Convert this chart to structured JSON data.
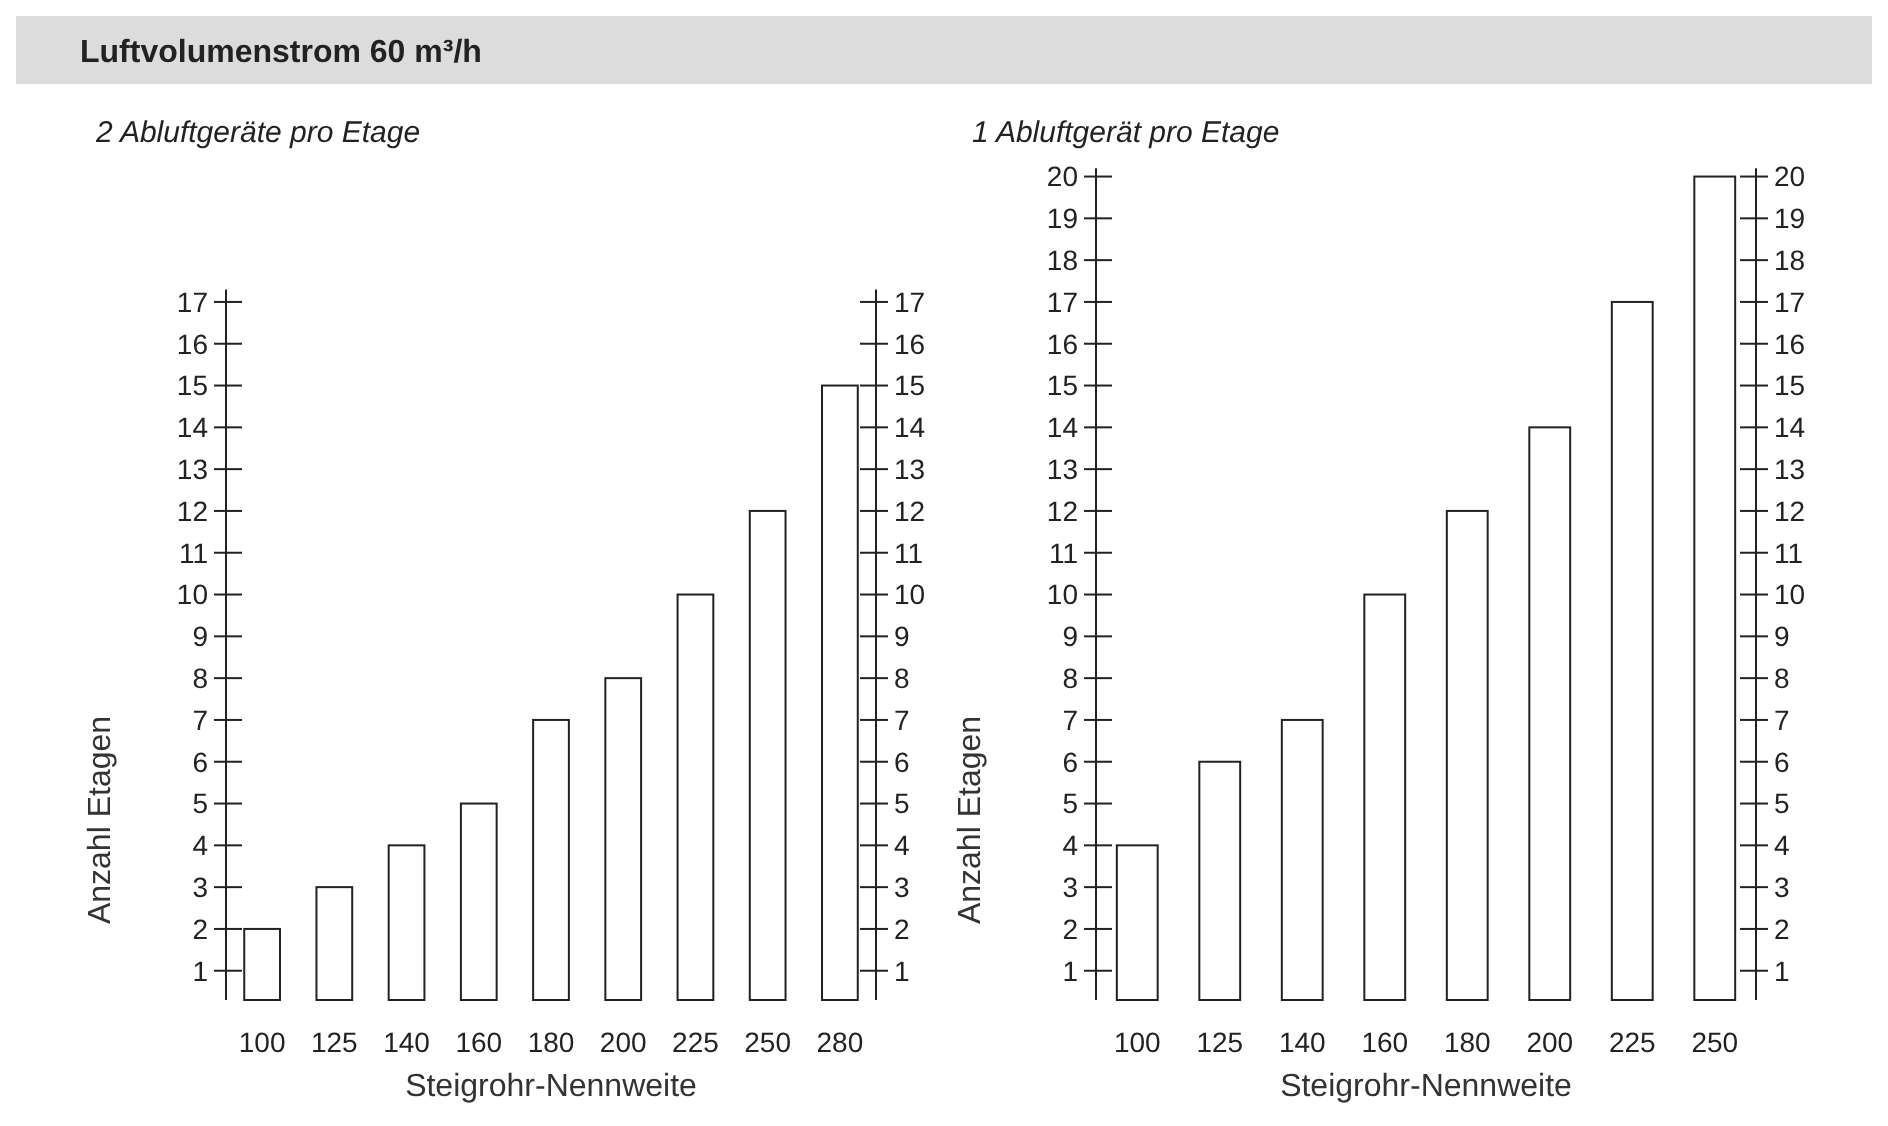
{
  "chart_data": [
    {
      "type": "bar",
      "title": "Luftvolumenstrom 60 m³/h",
      "subtitle": "2 Abluftgeräte pro Etage",
      "xlabel": "Steigrohr-Nennweite",
      "ylabel": "Anzahl Etagen",
      "categories": [
        "100",
        "125",
        "140",
        "160",
        "180",
        "200",
        "225",
        "250",
        "280"
      ],
      "values": [
        2,
        3,
        4,
        5,
        7,
        8,
        10,
        12,
        15
      ],
      "color": "#ffffff",
      "ylim": [
        0.3,
        17.3
      ],
      "yticks": [
        1,
        2,
        3,
        4,
        5,
        6,
        7,
        8,
        9,
        10,
        11,
        12,
        13,
        14,
        15,
        16,
        17
      ],
      "y2lim": [
        0.3,
        17.3
      ],
      "y2ticks": [
        1,
        2,
        3,
        4,
        5,
        6,
        7,
        8,
        9,
        10,
        11,
        12,
        13,
        14,
        15,
        16,
        17
      ],
      "grid": false
    },
    {
      "type": "bar",
      "subtitle": "1 Abluftgerät pro Etage",
      "xlabel": "Steigrohr-Nennweite",
      "ylabel": "Anzahl Etagen",
      "categories": [
        "100",
        "125",
        "140",
        "160",
        "180",
        "200",
        "225",
        "250"
      ],
      "values": [
        4,
        6,
        7,
        10,
        12,
        14,
        17,
        20
      ],
      "color": "#ffffff",
      "ylim": [
        0.3,
        20.2
      ],
      "yticks": [
        1,
        2,
        3,
        4,
        5,
        6,
        7,
        8,
        9,
        10,
        11,
        12,
        13,
        14,
        15,
        16,
        17,
        18,
        19,
        20
      ],
      "y2lim": [
        0.3,
        20.2
      ],
      "y2ticks": [
        1,
        2,
        3,
        4,
        5,
        6,
        7,
        8,
        9,
        10,
        11,
        12,
        13,
        14,
        15,
        16,
        17,
        18,
        19,
        20
      ],
      "grid": false
    }
  ]
}
